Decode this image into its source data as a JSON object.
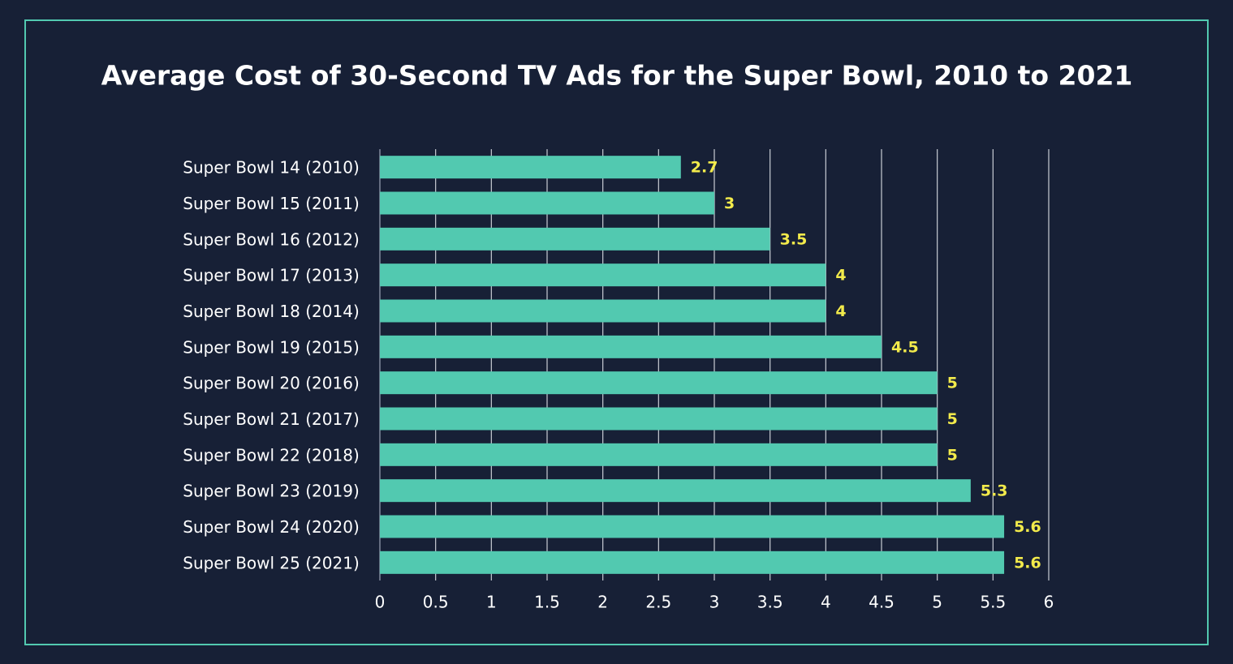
{
  "chart_data": {
    "type": "bar",
    "title": "Average Cost of 30-Second TV Ads for the Super Bowl, 2010 to 2021",
    "categories": [
      "Super Bowl 14 (2010)",
      "Super Bowl 15 (2011)",
      "Super Bowl 16 (2012)",
      "Super Bowl 17 (2013)",
      "Super Bowl 18 (2014)",
      "Super Bowl 19 (2015)",
      "Super Bowl 20 (2016)",
      "Super Bowl 21 (2017)",
      "Super Bowl 22 (2018)",
      "Super Bowl 23 (2019)",
      "Super Bowl 24 (2020)",
      "Super Bowl 25 (2021)"
    ],
    "values": [
      2.7,
      3,
      3.5,
      4,
      4,
      4.5,
      5,
      5,
      5,
      5.3,
      5.6,
      5.6
    ],
    "color": "#52c9b0",
    "value_label_color": "#f2ea4b",
    "xlim": [
      0,
      6
    ],
    "xticks": [
      0,
      0.5,
      1,
      1.5,
      2,
      2.5,
      3,
      3.5,
      4,
      4.5,
      5,
      5.5,
      6
    ],
    "grid": true
  }
}
